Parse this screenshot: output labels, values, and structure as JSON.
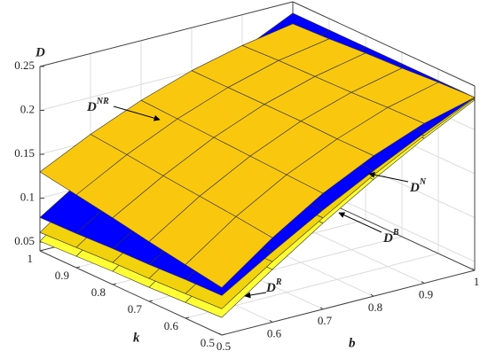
{
  "chart_data": {
    "type": "surface",
    "z_label": "D",
    "k_label": "k",
    "b_label": "b",
    "k": [
      0.5,
      0.6,
      0.7,
      0.8,
      0.9,
      1
    ],
    "b": [
      0.5,
      0.6,
      0.7,
      0.8,
      0.9,
      1
    ],
    "klim": [
      0.5,
      1
    ],
    "blim": [
      0.5,
      1
    ],
    "zlim": [
      0.04,
      0.25
    ],
    "kticks": [
      0.5,
      0.6,
      0.7,
      0.8,
      0.9,
      1
    ],
    "bticks": [
      0.5,
      0.6,
      0.7,
      0.8,
      0.9,
      1
    ],
    "zticks": [
      0.05,
      0.1,
      0.15,
      0.2,
      0.25
    ],
    "grid": true,
    "series": [
      {
        "label": "D",
        "label_sup": "R",
        "color": "#ffff33",
        "values": [
          [
            0.06,
            0.1,
            0.138,
            0.173,
            0.205,
            0.234
          ],
          [
            0.058,
            0.099,
            0.137,
            0.172,
            0.205,
            0.234
          ],
          [
            0.056,
            0.098,
            0.136,
            0.172,
            0.204,
            0.234
          ],
          [
            0.055,
            0.096,
            0.135,
            0.171,
            0.204,
            0.234
          ],
          [
            0.053,
            0.095,
            0.134,
            0.17,
            0.204,
            0.234
          ],
          [
            0.051,
            0.094,
            0.133,
            0.17,
            0.203,
            0.234
          ]
        ]
      },
      {
        "label": "D",
        "label_sup": "B",
        "color": "#f2d20c",
        "values": [
          [
            0.07,
            0.109,
            0.144,
            0.178,
            0.208,
            0.236
          ],
          [
            0.068,
            0.107,
            0.143,
            0.177,
            0.208,
            0.236
          ],
          [
            0.066,
            0.106,
            0.142,
            0.176,
            0.208,
            0.236
          ],
          [
            0.065,
            0.104,
            0.141,
            0.176,
            0.207,
            0.236
          ],
          [
            0.063,
            0.103,
            0.14,
            0.175,
            0.207,
            0.236
          ],
          [
            0.061,
            0.102,
            0.139,
            0.174,
            0.207,
            0.236
          ]
        ]
      },
      {
        "label": "D",
        "label_sup": "N",
        "color": "#0000ff",
        "values": [
          [
            0.085,
            0.12,
            0.153,
            0.183,
            0.211,
            0.237
          ],
          [
            0.084,
            0.119,
            0.152,
            0.183,
            0.211,
            0.237
          ],
          [
            0.082,
            0.118,
            0.152,
            0.183,
            0.211,
            0.237
          ],
          [
            0.081,
            0.117,
            0.151,
            0.182,
            0.211,
            0.237
          ],
          [
            0.079,
            0.116,
            0.15,
            0.182,
            0.211,
            0.237
          ],
          [
            0.078,
            0.115,
            0.149,
            0.181,
            0.21,
            0.237
          ]
        ]
      },
      {
        "label": "D",
        "label_sup": "NR",
        "color": "#f9c80e",
        "values": [
          [
            0.094,
            0.136,
            0.172,
            0.2,
            0.222,
            0.237
          ],
          [
            0.101,
            0.141,
            0.174,
            0.2,
            0.221,
            0.235
          ],
          [
            0.108,
            0.145,
            0.176,
            0.201,
            0.219,
            0.232
          ],
          [
            0.116,
            0.149,
            0.178,
            0.201,
            0.218,
            0.23
          ],
          [
            0.123,
            0.154,
            0.18,
            0.201,
            0.217,
            0.227
          ],
          [
            0.13,
            0.158,
            0.182,
            0.201,
            0.215,
            0.225
          ]
        ]
      }
    ]
  }
}
